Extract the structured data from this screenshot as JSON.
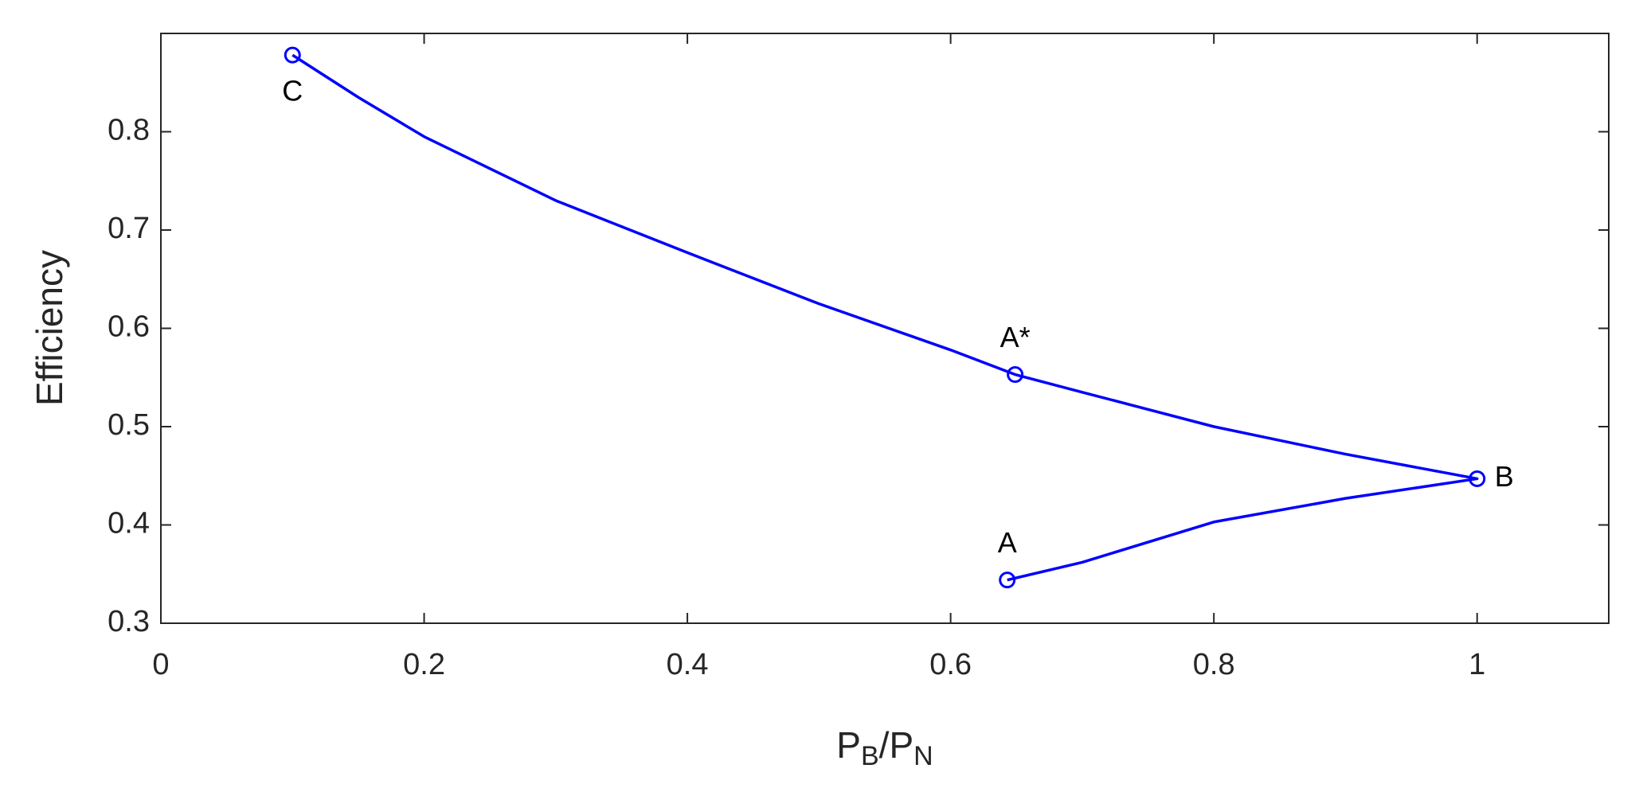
{
  "chart_data": {
    "type": "line",
    "xlabel": [
      "P",
      "B",
      "/P",
      "N"
    ],
    "ylabel": "Efficiency",
    "xlim": [
      0,
      1.1
    ],
    "ylim": [
      0.3,
      0.9
    ],
    "xticks": [
      0,
      0.2,
      0.4,
      0.6,
      0.8,
      1
    ],
    "yticks": [
      0.3,
      0.4,
      0.5,
      0.6,
      0.7,
      0.8
    ],
    "grid": false,
    "series": [
      {
        "color": "#0000ff",
        "x": [
          0.1,
          0.15,
          0.2,
          0.3,
          0.4,
          0.5,
          0.6,
          0.649,
          0.7,
          0.8,
          0.9,
          1.0,
          0.9,
          0.8,
          0.7,
          0.643
        ],
        "values": [
          0.878,
          0.835,
          0.795,
          0.73,
          0.677,
          0.625,
          0.578,
          0.553,
          0.535,
          0.5,
          0.472,
          0.447,
          0.427,
          0.403,
          0.362,
          0.344
        ]
      }
    ],
    "points": [
      {
        "label": "C",
        "x": 0.1,
        "y": 0.878,
        "position": "below"
      },
      {
        "label": "A*",
        "x": 0.649,
        "y": 0.553,
        "position": "above"
      },
      {
        "label": "B",
        "x": 1.0,
        "y": 0.447,
        "position": "right"
      },
      {
        "label": "A",
        "x": 0.643,
        "y": 0.344,
        "position": "above"
      }
    ]
  }
}
